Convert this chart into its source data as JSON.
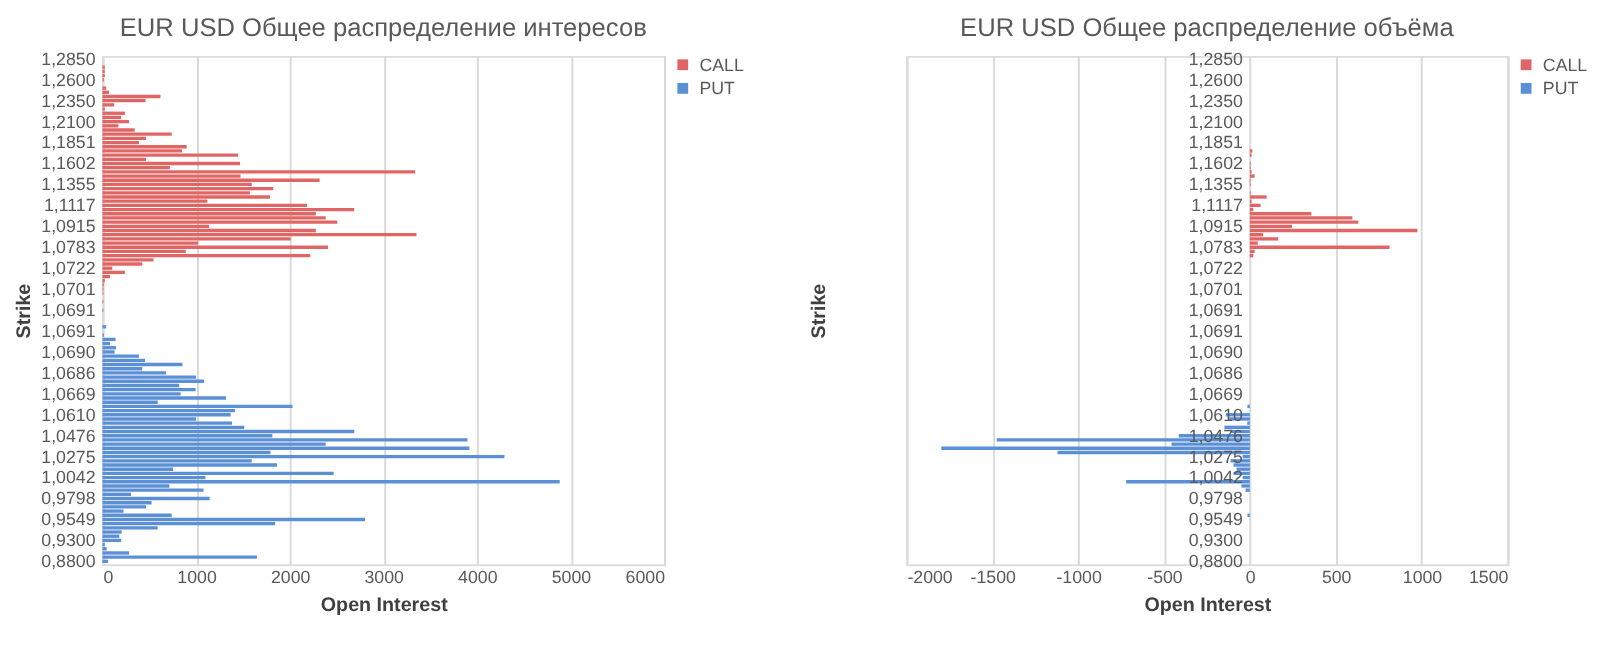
{
  "chart_data": [
    {
      "type": "bar",
      "orientation": "horizontal",
      "title": "EUR USD Общее распределение интересов",
      "xlabel": "Open Interest",
      "ylabel": "Strike",
      "categories": [
        "1,2850",
        null,
        null,
        null,
        null,
        "1,2600",
        null,
        null,
        null,
        null,
        "1,2350",
        null,
        null,
        null,
        null,
        "1,2100",
        null,
        null,
        null,
        null,
        "1,1851",
        null,
        null,
        null,
        null,
        "1,1602",
        null,
        null,
        null,
        null,
        "1,1355",
        null,
        null,
        null,
        null,
        "1,1117",
        null,
        null,
        null,
        null,
        "1,0915",
        null,
        null,
        null,
        null,
        "1,0783",
        null,
        null,
        null,
        null,
        "1,0722",
        null,
        null,
        null,
        null,
        "1,0701",
        null,
        null,
        null,
        null,
        "1,0691",
        null,
        null,
        null,
        null,
        "1,0691",
        null,
        null,
        null,
        null,
        "1,0690",
        null,
        null,
        null,
        null,
        "1,0686",
        null,
        null,
        null,
        null,
        "1,0669",
        null,
        null,
        null,
        null,
        "1,0610",
        null,
        null,
        null,
        null,
        "1,0476",
        null,
        null,
        null,
        null,
        "1,0275",
        null,
        null,
        null,
        null,
        "1,0042",
        null,
        null,
        null,
        null,
        "0,9798",
        null,
        null,
        null,
        null,
        "0,9549",
        null,
        null,
        null,
        null,
        "0,9300",
        null,
        null,
        null,
        null,
        "0,8800"
      ],
      "series": [
        {
          "name": "CALL",
          "color": "#e06666",
          "values": [
            null,
            null,
            25,
            25,
            25,
            15,
            null,
            40,
            70,
            620,
            460,
            125,
            25,
            240,
            200,
            285,
            170,
            345,
            740,
            465,
            390,
            900,
            850,
            1450,
            465,
            1470,
            720,
            3340,
            1475,
            2320,
            1595,
            1825,
            1575,
            1790,
            1120,
            2185,
            2690,
            2280,
            2385,
            2510,
            1140,
            2280,
            3355,
            2010,
            1020,
            2410,
            890,
            2220,
            545,
            425,
            105,
            240,
            80,
            25,
            15,
            10,
            10,
            null,
            10,
            null,
            null,
            null,
            null,
            null,
            null,
            null,
            null,
            null,
            null,
            null,
            null,
            null,
            null,
            null,
            null,
            null,
            null,
            null,
            null,
            null,
            null,
            null,
            null,
            null,
            null,
            null,
            null,
            null,
            null,
            null,
            null,
            null,
            null,
            null,
            null,
            null,
            null,
            null,
            null,
            null,
            null,
            null,
            null,
            null,
            null,
            null,
            null,
            null,
            null,
            null,
            null,
            null,
            null,
            null,
            null,
            null,
            null,
            null,
            null,
            null,
            null
          ]
        },
        {
          "name": "PUT",
          "color": "#5b8fd6",
          "values": [
            null,
            null,
            null,
            null,
            null,
            null,
            null,
            null,
            null,
            null,
            null,
            null,
            null,
            null,
            null,
            null,
            null,
            null,
            null,
            null,
            null,
            null,
            null,
            null,
            null,
            null,
            null,
            null,
            null,
            null,
            null,
            null,
            null,
            null,
            null,
            null,
            null,
            null,
            null,
            null,
            null,
            null,
            null,
            null,
            null,
            null,
            null,
            null,
            null,
            null,
            null,
            null,
            null,
            null,
            null,
            null,
            null,
            null,
            null,
            null,
            10,
            null,
            null,
            null,
            40,
            null,
            15,
            140,
            80,
            145,
            130,
            390,
            455,
            855,
            425,
            680,
            1000,
            1085,
            820,
            995,
            835,
            1320,
            590,
            2030,
            1415,
            1370,
            1000,
            1385,
            1515,
            2690,
            1815,
            3900,
            2385,
            3920,
            1795,
            4295,
            1595,
            1865,
            755,
            2470,
            1100,
            4885,
            715,
            1080,
            305,
            1145,
            525,
            465,
            225,
            740,
            2805,
            1845,
            590,
            205,
            180,
            200,
            25,
            45,
            285,
            1650,
            60
          ]
        }
      ],
      "xlim": [
        0,
        6000
      ],
      "xticks": [
        0,
        1000,
        2000,
        3000,
        4000,
        5000,
        6000
      ],
      "grid": "x",
      "legend": "right"
    },
    {
      "type": "bar",
      "orientation": "horizontal",
      "title": "EUR USD Общее распределение объёма",
      "xlabel": "Open Interest",
      "ylabel": "Strike",
      "categories": [
        "1,2850",
        null,
        null,
        null,
        null,
        "1,2600",
        null,
        null,
        null,
        null,
        "1,2350",
        null,
        null,
        null,
        null,
        "1,2100",
        null,
        null,
        null,
        null,
        "1,1851",
        null,
        null,
        null,
        null,
        "1,1602",
        null,
        null,
        null,
        null,
        "1,1355",
        null,
        null,
        null,
        null,
        "1,1117",
        null,
        null,
        null,
        null,
        "1,0915",
        null,
        null,
        null,
        null,
        "1,0783",
        null,
        null,
        null,
        null,
        "1,0722",
        null,
        null,
        null,
        null,
        "1,0701",
        null,
        null,
        null,
        null,
        "1,0691",
        null,
        null,
        null,
        null,
        "1,0691",
        null,
        null,
        null,
        null,
        "1,0690",
        null,
        null,
        null,
        null,
        "1,0686",
        null,
        null,
        null,
        null,
        "1,0669",
        null,
        null,
        null,
        null,
        "1,0610",
        null,
        null,
        null,
        null,
        "1,0476",
        null,
        null,
        null,
        null,
        "1,0275",
        null,
        null,
        null,
        null,
        "1,0042",
        null,
        null,
        null,
        null,
        "0,9798",
        null,
        null,
        null,
        null,
        "0,9549",
        null,
        null,
        null,
        null,
        "0,9300",
        null,
        null,
        null,
        null,
        "0,8800"
      ],
      "series": [
        {
          "name": "CALL",
          "color": "#e06666",
          "values": [
            null,
            null,
            null,
            null,
            null,
            null,
            null,
            null,
            null,
            null,
            null,
            null,
            null,
            null,
            null,
            null,
            null,
            null,
            null,
            null,
            null,
            null,
            15,
            10,
            null,
            5,
            5,
            10,
            28,
            5,
            5,
            null,
            5,
            98,
            10,
            63,
            20,
            358,
            597,
            632,
            246,
            976,
            77,
            165,
            46,
            814,
            28,
            20,
            null,
            null,
            null,
            null,
            null,
            null,
            null,
            null,
            null,
            null,
            null,
            null,
            null,
            null,
            null,
            null,
            null,
            null,
            null,
            null,
            null,
            null,
            null,
            null,
            null,
            null,
            null,
            null,
            null,
            null,
            null,
            null,
            null,
            null,
            null,
            null,
            null,
            null,
            null,
            null,
            null,
            null,
            null,
            null,
            null,
            null,
            null,
            null,
            null,
            null,
            null,
            null,
            null,
            null,
            null,
            null,
            null,
            null,
            null,
            null,
            null,
            null,
            null,
            null,
            null,
            null,
            null,
            null,
            null,
            null,
            null,
            null,
            null
          ]
        },
        {
          "name": "PUT",
          "color": "#5b8fd6",
          "values": [
            null,
            null,
            null,
            null,
            null,
            null,
            null,
            null,
            null,
            null,
            null,
            null,
            null,
            null,
            null,
            null,
            null,
            null,
            null,
            null,
            null,
            null,
            null,
            null,
            null,
            null,
            null,
            null,
            null,
            null,
            null,
            null,
            null,
            null,
            null,
            null,
            null,
            null,
            null,
            null,
            null,
            null,
            null,
            null,
            null,
            null,
            null,
            null,
            null,
            null,
            null,
            null,
            null,
            null,
            null,
            null,
            null,
            null,
            null,
            null,
            null,
            null,
            null,
            null,
            null,
            null,
            null,
            null,
            null,
            null,
            null,
            null,
            null,
            null,
            null,
            null,
            null,
            null,
            null,
            null,
            null,
            null,
            null,
            -14,
            null,
            -140,
            -120,
            -15,
            -148,
            -112,
            -414,
            -1474,
            -456,
            -1797,
            -1120,
            -42,
            -112,
            -95,
            -77,
            -95,
            -42,
            -720,
            -49,
            -25,
            null,
            null,
            null,
            null,
            null,
            -14,
            null,
            null,
            null,
            null,
            null,
            null,
            null,
            null,
            null,
            null,
            null
          ]
        }
      ],
      "xlim": [
        -2000,
        1500
      ],
      "xticks": [
        -2000,
        -1500,
        -1000,
        -500,
        0,
        500,
        1000,
        1500
      ],
      "grid": "x",
      "legend": "right"
    }
  ]
}
